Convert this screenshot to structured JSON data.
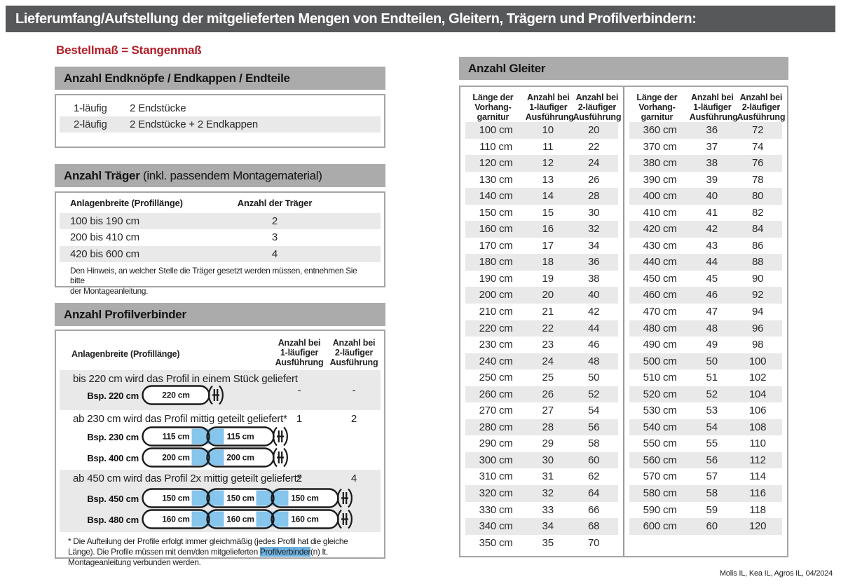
{
  "page": {
    "title": "Lieferumfang/Aufstellung der mitgelieferten Mengen von Endteilen, Gleitern, Trägern und Profilverbindern:",
    "bestellmass_note": "Bestellmaß = Stangenmaß",
    "footer": "Molis IL, Kea IL, Agros IL, 04/2024"
  },
  "colors": {
    "topbar_gray": "#57585a",
    "header_gray": "#ababab",
    "stripe_gray": "#e9e9e9",
    "accent_red": "#b21e28",
    "connector_blue": "#86c5ec",
    "highlight_blue": "#6db3e2"
  },
  "endteile": {
    "header": "Anzahl Endknöpfe / Endkappen / Endteile",
    "rows": [
      {
        "label": "1-läufig",
        "value": "2 Endstücke"
      },
      {
        "label": "2-läufig",
        "value": "2 Endstücke + 2 Endkappen"
      }
    ]
  },
  "traeger": {
    "header_bold": "Anzahl Träger",
    "header_rest": " (inkl. passendem Montagematerial)",
    "col1": "Anlagenbreite (Profillänge)",
    "col2": "Anzahl der Träger",
    "rows": [
      {
        "range": "100 bis 190 cm",
        "count": "2"
      },
      {
        "range": "200 bis 410 cm",
        "count": "3"
      },
      {
        "range": "420 bis 600 cm",
        "count": "4"
      }
    ],
    "note": "Den Hinweis, an welcher Stelle die Träger gesetzt werden müssen, entnehmen Sie bitte\nder Montageanleitung."
  },
  "profilverbinder": {
    "header": "Anzahl Profilverbinder",
    "col1": "Anlagenbreite (Profillänge)",
    "col2": "Anzahl bei\n1-läufiger\nAusführung",
    "col3": "Anzahl bei\n2-läufiger\nAusführung",
    "rows": [
      {
        "text": "bis 220 cm wird das Profil in einem Stück geliefert",
        "val1": "-",
        "val2": "-",
        "examples": [
          {
            "label": "Bsp. 220 cm",
            "segments": [
              "220 cm"
            ]
          }
        ]
      },
      {
        "text": "ab 230 cm wird das Profil mittig geteilt geliefert*",
        "val1": "1",
        "val2": "2",
        "examples": [
          {
            "label": "Bsp. 230 cm",
            "segments": [
              "115 cm",
              "115 cm"
            ]
          },
          {
            "label": "Bsp. 400 cm",
            "segments": [
              "200 cm",
              "200 cm"
            ]
          }
        ]
      },
      {
        "text": "ab 450 cm wird das Profil 2x mittig geteilt geliefert*",
        "val1": "2",
        "val2": "4",
        "examples": [
          {
            "label": "Bsp. 450 cm",
            "segments": [
              "150 cm",
              "150 cm",
              "150 cm"
            ]
          },
          {
            "label": "Bsp. 480 cm",
            "segments": [
              "160 cm",
              "160 cm",
              "160 cm"
            ]
          }
        ]
      }
    ],
    "footnote_pre": "* Die Aufteilung der Profile erfolgt immer gleichmäßig (jedes Profil hat die gleiche Länge). Die Profile müssen mit dem/den mitgelieferten ",
    "footnote_highlight": "Profilverbinder",
    "footnote_post": "(n) lt. Montageanleitung verbunden werden."
  },
  "gleiter": {
    "header": "Anzahl Gleiter",
    "col_headers": [
      "Länge der\nVorhang-\ngarnitur",
      "Anzahl bei\n1-läufiger\nAusführung",
      "Anzahl bei\n2-läufiger\nAusführung"
    ],
    "table1": [
      [
        "100 cm",
        "10",
        "20"
      ],
      [
        "110 cm",
        "11",
        "22"
      ],
      [
        "120 cm",
        "12",
        "24"
      ],
      [
        "130 cm",
        "13",
        "26"
      ],
      [
        "140 cm",
        "14",
        "28"
      ],
      [
        "150 cm",
        "15",
        "30"
      ],
      [
        "160 cm",
        "16",
        "32"
      ],
      [
        "170 cm",
        "17",
        "34"
      ],
      [
        "180 cm",
        "18",
        "36"
      ],
      [
        "190 cm",
        "19",
        "38"
      ],
      [
        "200 cm",
        "20",
        "40"
      ],
      [
        "210 cm",
        "21",
        "42"
      ],
      [
        "220 cm",
        "22",
        "44"
      ],
      [
        "230 cm",
        "23",
        "46"
      ],
      [
        "240 cm",
        "24",
        "48"
      ],
      [
        "250 cm",
        "25",
        "50"
      ],
      [
        "260 cm",
        "26",
        "52"
      ],
      [
        "270 cm",
        "27",
        "54"
      ],
      [
        "280 cm",
        "28",
        "56"
      ],
      [
        "290 cm",
        "29",
        "58"
      ],
      [
        "300 cm",
        "30",
        "60"
      ],
      [
        "310 cm",
        "31",
        "62"
      ],
      [
        "320 cm",
        "32",
        "64"
      ],
      [
        "330 cm",
        "33",
        "66"
      ],
      [
        "340 cm",
        "34",
        "68"
      ],
      [
        "350 cm",
        "35",
        "70"
      ]
    ],
    "table2": [
      [
        "360 cm",
        "36",
        "72"
      ],
      [
        "370 cm",
        "37",
        "74"
      ],
      [
        "380 cm",
        "38",
        "76"
      ],
      [
        "390 cm",
        "39",
        "78"
      ],
      [
        "400 cm",
        "40",
        "80"
      ],
      [
        "410 cm",
        "41",
        "82"
      ],
      [
        "420 cm",
        "42",
        "84"
      ],
      [
        "430 cm",
        "43",
        "86"
      ],
      [
        "440 cm",
        "44",
        "88"
      ],
      [
        "450 cm",
        "45",
        "90"
      ],
      [
        "460 cm",
        "46",
        "92"
      ],
      [
        "470 cm",
        "47",
        "94"
      ],
      [
        "480 cm",
        "48",
        "96"
      ],
      [
        "490 cm",
        "49",
        "98"
      ],
      [
        "500 cm",
        "50",
        "100"
      ],
      [
        "510 cm",
        "51",
        "102"
      ],
      [
        "520 cm",
        "52",
        "104"
      ],
      [
        "530 cm",
        "53",
        "106"
      ],
      [
        "540 cm",
        "54",
        "108"
      ],
      [
        "550 cm",
        "55",
        "110"
      ],
      [
        "560 cm",
        "56",
        "112"
      ],
      [
        "570 cm",
        "57",
        "114"
      ],
      [
        "580 cm",
        "58",
        "116"
      ],
      [
        "590 cm",
        "59",
        "118"
      ],
      [
        "600 cm",
        "60",
        "120"
      ]
    ]
  }
}
